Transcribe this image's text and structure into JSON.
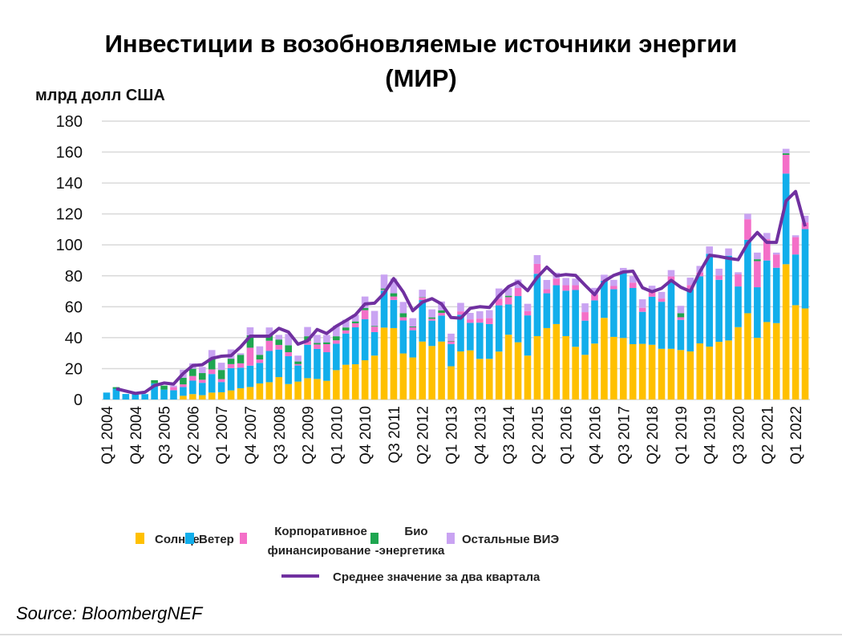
{
  "chart_data": {
    "type": "bar",
    "stacked": true,
    "title": "Инвестиции в возобновляемые источники энергии (МИР)",
    "title_lines": [
      "Инвестиции в возобновляемые источники энергии",
      "(МИР)"
    ],
    "ylabel": "млрд долл США",
    "xlabel": "",
    "ylim": [
      0,
      180
    ],
    "yticks": [
      0,
      20,
      40,
      60,
      80,
      100,
      120,
      140,
      160,
      180
    ],
    "grid": true,
    "legend_position": "bottom",
    "categories": [
      "Q1 2004",
      "Q2 2004",
      "Q3 2004",
      "Q4 2004",
      "Q1 2005",
      "Q2 2005",
      "Q3 2005",
      "Q4 2005",
      "Q1 2006",
      "Q2 2006",
      "Q3 2006",
      "Q4 2006",
      "Q1 2007",
      "Q2 2007",
      "Q3 2007",
      "Q4 2007",
      "Q1 2008",
      "Q2 2008",
      "Q3 2008",
      "Q4 2008",
      "Q1 2009",
      "Q2 2009",
      "Q3 2009",
      "Q4 2009",
      "Q1 2010",
      "Q2 2010",
      "Q3 2010",
      "Q4 2010",
      "Q1 2011",
      "Q2 2011",
      "Q3 2011",
      "Q4 2011",
      "Q1 2012",
      "Q2 2012",
      "Q3 2012",
      "Q4 2012",
      "Q1 2013",
      "Q2 2013",
      "Q3 2013",
      "Q4 2013",
      "Q1 2014",
      "Q2 2014",
      "Q3 2014",
      "Q4 2014",
      "Q1 2015",
      "Q2 2015",
      "Q3 2015",
      "Q4 2015",
      "Q1 2016",
      "Q2 2016",
      "Q3 2016",
      "Q4 2016",
      "Q1 2017",
      "Q2 2017",
      "Q3 2017",
      "Q4 2017",
      "Q1 2018",
      "Q2 2018",
      "Q3 2018",
      "Q4 2018",
      "Q1 2019",
      "Q2 2019",
      "Q3 2019",
      "Q4 2019",
      "Q1 2020",
      "Q2 2020",
      "Q3 2020",
      "Q4 2020",
      "Q1 2021",
      "Q2 2021",
      "Q3 2021",
      "Q4 2021",
      "Q1 2022",
      "Q2 2022"
    ],
    "xtick_labels": [
      "Q1 2004",
      "Q4 2004",
      "Q3 2005",
      "Q2 2006",
      "Q1 2007",
      "Q4 2007",
      "Q3 2008",
      "Q2 2009",
      "Q1 2010",
      "Q4 2010",
      "Q3 2011",
      "Q2 2012",
      "Q1 2013",
      "Q4 2013",
      "Q3 2014",
      "Q2 2015",
      "Q1 2016",
      "Q4 2016",
      "Q3 2017",
      "Q2 2018",
      "Q1 2019",
      "Q4 2019",
      "Q3 2020",
      "Q2 2021",
      "Q1 2022"
    ],
    "series": [
      {
        "name": "Солнце",
        "color": "#FFC000",
        "values": [
          0,
          0,
          0,
          0,
          0,
          0,
          0,
          0,
          2.4,
          3.5,
          2.8,
          4.5,
          4.7,
          5.9,
          7.3,
          8.1,
          10.4,
          11.2,
          14.5,
          10,
          11.6,
          13.8,
          13.3,
          12.1,
          19,
          22.5,
          22.8,
          25.4,
          28.4,
          46.5,
          46.2,
          29.8,
          27.2,
          37.5,
          34.6,
          37.5,
          21.5,
          31.1,
          31.8,
          26.3,
          26.3,
          31,
          41.9,
          37,
          28.4,
          41,
          46.2,
          48.8,
          41,
          34.1,
          28.9,
          36.2,
          52.8,
          40.5,
          39.8,
          35.8,
          36,
          35.4,
          32.8,
          32.8,
          32,
          31.1,
          36.3,
          34.2,
          37.3,
          38.2,
          46.8,
          55.8,
          39.9,
          50.1,
          49.4,
          87.5,
          61,
          58.9
        ]
      },
      {
        "name": "Ветер",
        "color": "#12AEEB",
        "values": [
          4.5,
          7,
          3.6,
          3.6,
          3.5,
          10.5,
          6.4,
          6,
          5.7,
          8.7,
          8,
          12,
          6.6,
          14.4,
          13.3,
          13.8,
          13.3,
          20.2,
          17.8,
          18,
          10.4,
          21.6,
          19.4,
          18.5,
          17.1,
          20.2,
          23.9,
          26.5,
          15.2,
          23.9,
          18.2,
          21.3,
          17.6,
          26.8,
          16.4,
          16.8,
          14.4,
          23.7,
          17.8,
          23.4,
          22.5,
          29.9,
          19.6,
          29.9,
          26,
          40.3,
          22.5,
          25.1,
          29.4,
          36.7,
          22.1,
          27.9,
          24,
          30.8,
          42.7,
          36.3,
          20.7,
          31.1,
          30.4,
          43.7,
          19.5,
          40.3,
          43.4,
          60,
          40.1,
          54.8,
          26.3,
          47.5,
          32.7,
          39.8,
          35.8,
          58.6,
          32.8,
          51.3
        ]
      },
      {
        "name": "Корпоративное финансирование",
        "color": "#F46FC8",
        "values": [
          0,
          0,
          0,
          0,
          0,
          0,
          0,
          2,
          1.7,
          3,
          2,
          3,
          1.9,
          2.6,
          2.8,
          11.6,
          2.2,
          6.6,
          3,
          2.6,
          0.9,
          2.6,
          2.9,
          5.2,
          2.2,
          2,
          2.6,
          5.9,
          3.5,
          0.5,
          2.2,
          2.1,
          1.9,
          1.7,
          1.2,
          1.7,
          1.7,
          2.2,
          2.2,
          2.6,
          3.8,
          4.3,
          4.7,
          5.2,
          2.8,
          6.4,
          2.6,
          4.3,
          3.5,
          3.1,
          5.5,
          3.8,
          0.4,
          2.1,
          0,
          3.5,
          2.6,
          4,
          2.1,
          3.1,
          1.7,
          2.6,
          2.4,
          0,
          2.9,
          0,
          7.8,
          13.3,
          16.9,
          13.8,
          8.6,
          12.1,
          11.2,
          4.3
        ]
      },
      {
        "name": "Био -энергетика",
        "color": "#1EA650",
        "values": [
          0,
          1,
          0,
          0,
          0,
          2,
          2.6,
          0,
          4.3,
          4.7,
          4.3,
          7.3,
          5.9,
          3.5,
          5.5,
          8,
          3,
          3.8,
          3.5,
          4.5,
          1.7,
          2.9,
          1,
          1.2,
          2.6,
          1.9,
          1.2,
          1.4,
          0.5,
          0.9,
          2.1,
          2.6,
          0.5,
          0.3,
          0.9,
          1.7,
          0.3,
          0,
          0,
          0,
          0,
          0,
          0.9,
          0,
          0,
          0,
          0,
          0,
          0,
          0,
          0,
          0,
          0,
          0,
          0,
          0,
          0,
          0,
          0,
          0,
          2.6,
          0,
          0,
          0,
          0,
          0,
          0,
          0,
          1.2,
          0,
          0,
          1,
          0,
          0
        ]
      },
      {
        "name": "Остальные ВИЭ",
        "color": "#C9A3F2",
        "values": [
          0,
          0,
          0,
          0,
          0,
          0,
          0,
          1,
          5.2,
          3.5,
          4,
          5.2,
          4.7,
          6,
          1,
          5.2,
          5.5,
          4.8,
          3,
          7.3,
          3.8,
          6,
          5.2,
          4.8,
          6.9,
          5,
          4.3,
          7.4,
          9.7,
          9,
          9.5,
          7.3,
          5.4,
          4.7,
          5.2,
          5.7,
          4.7,
          5.5,
          4.2,
          4.8,
          5.2,
          6.6,
          5,
          5.5,
          4.7,
          5.7,
          6,
          3.8,
          4.7,
          4.3,
          5.7,
          4.3,
          3.5,
          4,
          2.6,
          4.3,
          5.5,
          3.1,
          4.3,
          4.1,
          4.8,
          4.8,
          4.3,
          4.8,
          4.3,
          4.7,
          1.4,
          3.5,
          4.3,
          4,
          1.2,
          2.9,
          1.2,
          4.3
        ]
      }
    ],
    "line_series": {
      "name": "Среднее значение за два квартала",
      "color": "#7030A0",
      "values": [
        null,
        7,
        5.5,
        4,
        4.7,
        9,
        10.7,
        10,
        16.8,
        22,
        22.5,
        26.6,
        28,
        28.4,
        34,
        41,
        41,
        41,
        46,
        43.6,
        35.8,
        38,
        45.3,
        42.7,
        47.4,
        51,
        54.8,
        61.8,
        62.3,
        68.7,
        78.2,
        69.5,
        57.4,
        63,
        65.2,
        61.8,
        53,
        52.6,
        59,
        60,
        59.5,
        67,
        73,
        76,
        70.4,
        79,
        85.6,
        80,
        80.8,
        80.3,
        73.9,
        67.8,
        76.5,
        80.3,
        82.5,
        83,
        72.3,
        69.7,
        71.9,
        77.1,
        72.6,
        70,
        82.6,
        93.3,
        92.5,
        91.3,
        90.4,
        101.1,
        108,
        101.6,
        101.6,
        128.4,
        134.5,
        112
      ]
    }
  },
  "source": "Source: BloombergNEF"
}
